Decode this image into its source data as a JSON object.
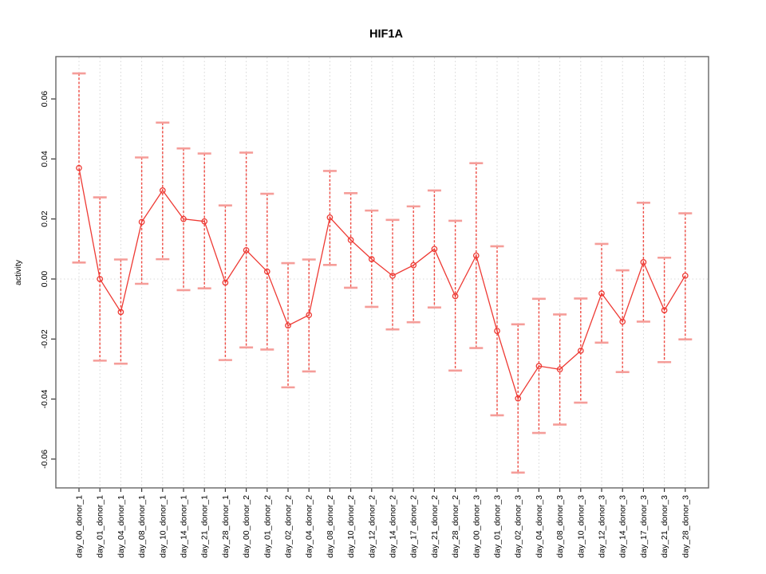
{
  "chart_data": {
    "type": "scatter",
    "title": "HIF1A",
    "xlabel": "",
    "ylabel": "activity",
    "ylim": [
      -0.0696,
      0.0741
    ],
    "yticks": [
      -0.06,
      -0.04,
      -0.02,
      0.0,
      0.02,
      0.04,
      0.06
    ],
    "grid": "vertical dotted gridline at every category plus dotted horizontal line at y=0",
    "legend": "none",
    "series_color": "#ee3a34",
    "errorbar_color": "#ee4a42",
    "cap_color": "#f59d99",
    "grid_color": "#d6d6d6",
    "categories": [
      "day_00_donor_1",
      "day_01_donor_1",
      "day_04_donor_1",
      "day_08_donor_1",
      "day_10_donor_1",
      "day_14_donor_1",
      "day_21_donor_1",
      "day_28_donor_1",
      "day_00_donor_2",
      "day_01_donor_2",
      "day_02_donor_2",
      "day_04_donor_2",
      "day_08_donor_2",
      "day_10_donor_2",
      "day_12_donor_2",
      "day_14_donor_2",
      "day_17_donor_2",
      "day_21_donor_2",
      "day_28_donor_2",
      "day_00_donor_3",
      "day_01_donor_3",
      "day_02_donor_3",
      "day_04_donor_3",
      "day_08_donor_3",
      "day_10_donor_3",
      "day_12_donor_3",
      "day_14_donor_3",
      "day_17_donor_3",
      "day_21_donor_3",
      "day_28_donor_3"
    ],
    "values": [
      0.037,
      0.0,
      -0.011,
      0.019,
      0.0295,
      0.02,
      0.0192,
      -0.0012,
      0.0096,
      0.0025,
      -0.0155,
      -0.012,
      0.0205,
      0.013,
      0.0066,
      0.0011,
      0.0046,
      0.01,
      -0.0057,
      0.0078,
      -0.0173,
      -0.0398,
      -0.029,
      -0.0301,
      -0.0239,
      -0.0048,
      -0.0142,
      0.0056,
      -0.0104,
      0.0011
    ],
    "error_high": [
      0.0685,
      0.0272,
      0.0065,
      0.0405,
      0.0521,
      0.0435,
      0.0418,
      0.0245,
      0.0421,
      0.0284,
      0.0053,
      0.0065,
      0.036,
      0.0286,
      0.0228,
      0.0197,
      0.0242,
      0.0295,
      0.0194,
      0.0386,
      0.0109,
      -0.0151,
      -0.0066,
      -0.0118,
      -0.0065,
      0.0117,
      0.0029,
      0.0254,
      0.0071,
      0.0219
    ],
    "error_low": [
      0.0055,
      -0.0272,
      -0.0282,
      -0.0016,
      0.0066,
      -0.0037,
      -0.0031,
      -0.027,
      -0.0228,
      -0.0235,
      -0.0361,
      -0.0308,
      0.0047,
      -0.0029,
      -0.0093,
      -0.0168,
      -0.0144,
      -0.0095,
      -0.0305,
      -0.023,
      -0.0454,
      -0.0645,
      -0.0513,
      -0.0485,
      -0.0412,
      -0.0212,
      -0.031,
      -0.0142,
      -0.0277,
      -0.0201
    ]
  }
}
